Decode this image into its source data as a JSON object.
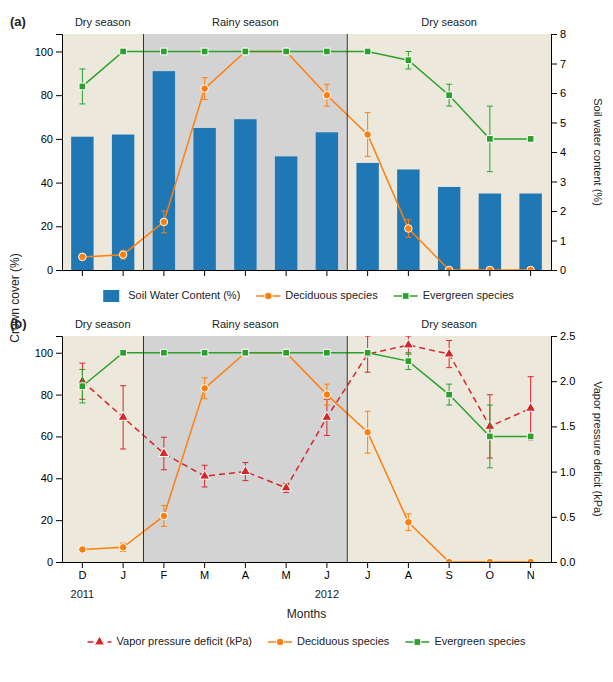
{
  "chart_data": [
    {
      "type": "bar",
      "title": "(a)",
      "y_label": "Crown cover (%)",
      "y2_label": "Soil water content (%)",
      "categories": [
        "D",
        "J",
        "F",
        "M",
        "A",
        "M",
        "J",
        "J",
        "A",
        "S",
        "O",
        "N"
      ],
      "tick_labels": "y",
      "ylim": [
        0,
        108
      ],
      "yticks": [
        0,
        20,
        40,
        60,
        80,
        100
      ],
      "y2lim": [
        0,
        8
      ],
      "y2ticks": [
        0,
        1,
        2,
        3,
        4,
        5,
        6,
        7,
        8
      ],
      "legend": "bottom",
      "bands": [
        {
          "label": "Dry season",
          "color": "#ede8dc",
          "end": 1.5
        },
        {
          "label": "Rainy season",
          "color": "#d3d3d3",
          "end": 6.5
        },
        {
          "label": "Dry season",
          "color": "#ede8dc"
        }
      ],
      "series": [
        {
          "name": "Soil Water Content (%)",
          "type": "bar",
          "values": [
            61,
            62,
            91,
            65,
            69,
            52,
            63,
            49,
            46,
            38,
            35,
            35
          ]
        },
        {
          "name": "Deciduous species",
          "type": "line",
          "marker": "circle",
          "line_style": "solid",
          "values": [
            6,
            7,
            22,
            83,
            100,
            100,
            80,
            62,
            19,
            0,
            0,
            0
          ],
          "errors": [
            1,
            2,
            5,
            5,
            0,
            0,
            5,
            10,
            4,
            0,
            0,
            0
          ]
        },
        {
          "name": "Evergreen species",
          "type": "line",
          "marker": "square",
          "line_style": "solid",
          "values": [
            84,
            100,
            100,
            100,
            100,
            100,
            100,
            100,
            96,
            80,
            60,
            60
          ],
          "errors": [
            8,
            0,
            0,
            0,
            0,
            0,
            0,
            0,
            4,
            5,
            15,
            0
          ]
        }
      ]
    },
    {
      "type": "line",
      "title": "(b)",
      "x_label": "Months",
      "y2_label": "Vapor pressure deficit (kPa)",
      "annotations": [
        {
          "text": "2011"
        },
        {
          "text": "2012"
        }
      ],
      "categories": [
        "D",
        "J",
        "F",
        "M",
        "A",
        "M",
        "J",
        "J",
        "A",
        "S",
        "O",
        "N"
      ],
      "ylim": [
        0,
        108
      ],
      "yticks": [
        0,
        20,
        40,
        60,
        80,
        100
      ],
      "y2lim": [
        0,
        2.5
      ],
      "y2ticks": [
        {
          "value": 0,
          "label": "0.0"
        },
        0.5,
        {
          "value": 1,
          "label": "1.0"
        },
        1.5,
        {
          "value": 2,
          "label": "2.0"
        },
        2.5
      ],
      "legend": "bottom",
      "bands": [
        {
          "label": "Dry season",
          "color": "#ede8dc",
          "end": 1.5
        },
        {
          "label": "Rainy season",
          "color": "#d3d3d3",
          "end": 6.5
        },
        {
          "label": "Dry season",
          "color": "#ede8dc"
        }
      ],
      "series": [
        {
          "name": "Vapor pressure deficit (kPa)",
          "type": "line",
          "axis": "y2",
          "marker": "triangle",
          "line_style": "dashed",
          "values": [
            2.0,
            1.6,
            1.2,
            0.95,
            1.0,
            0.82,
            1.6,
            2.3,
            2.4,
            2.3,
            1.5,
            1.7
          ],
          "errors": [
            0.2,
            0.35,
            0.18,
            0.12,
            0.1,
            0.05,
            0.2,
            0.2,
            0.1,
            0.15,
            0.35,
            0.35
          ]
        },
        {
          "name": "Deciduous species",
          "type": "line",
          "marker": "circle",
          "line_style": "solid",
          "values": [
            6,
            7,
            22,
            83,
            100,
            100,
            80,
            62,
            19,
            0,
            0,
            0
          ],
          "errors": [
            1,
            2,
            5,
            5,
            0,
            0,
            5,
            10,
            4,
            0,
            0,
            0
          ]
        },
        {
          "name": "Evergreen species",
          "type": "line",
          "marker": "square",
          "line_style": "solid",
          "values": [
            84,
            100,
            100,
            100,
            100,
            100,
            100,
            100,
            96,
            80,
            60,
            60
          ],
          "errors": [
            8,
            0,
            0,
            0,
            0,
            0,
            0,
            0,
            4,
            5,
            15,
            0
          ]
        }
      ]
    }
  ]
}
